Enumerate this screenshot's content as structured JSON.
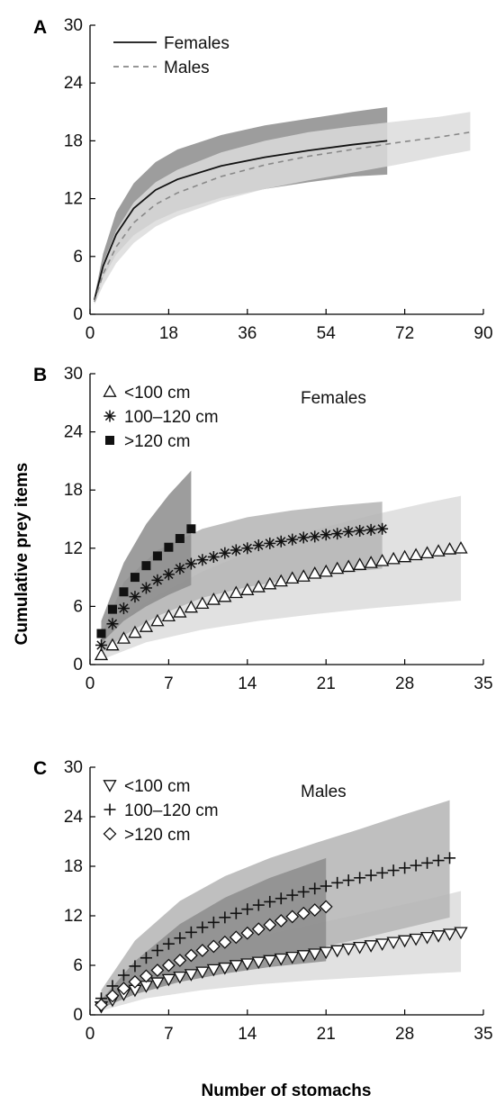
{
  "colors": {
    "background": "#ffffff",
    "axis": "#000000",
    "band_light": "#dcdcdc",
    "band_mid": "#b4b4b4",
    "band_dark": "#8c8c8c",
    "females_line": "#111111",
    "males_line": "#888888"
  },
  "axis_titles": {
    "ylabel": "Cumulative prey items",
    "xlabel": "Number of stomachs"
  },
  "chart_data": [
    {
      "panel": "A",
      "type": "line",
      "xlim": [
        0,
        90
      ],
      "ylim": [
        0,
        30
      ],
      "xticks": [
        0,
        18,
        36,
        54,
        72,
        90
      ],
      "yticks": [
        0,
        6,
        12,
        18,
        24,
        30
      ],
      "legend_position": "top-left",
      "series": [
        {
          "name": "Females",
          "style": "solid",
          "color": "#111111",
          "x": [
            1,
            3,
            6,
            10,
            15,
            20,
            30,
            40,
            50,
            60,
            68
          ],
          "y": [
            1.5,
            5.0,
            8.3,
            11.0,
            12.9,
            14.0,
            15.4,
            16.3,
            17.0,
            17.6,
            18.0
          ],
          "band_lower": [
            1.3,
            3.8,
            6.2,
            8.2,
            9.7,
            10.7,
            12.1,
            13.0,
            13.7,
            14.3,
            14.5
          ],
          "band_upper": [
            1.8,
            6.3,
            10.6,
            13.6,
            15.8,
            17.1,
            18.6,
            19.6,
            20.3,
            21.0,
            21.5
          ],
          "band_color": "#8c8c8c"
        },
        {
          "name": "Males",
          "style": "dashed",
          "color": "#888888",
          "x": [
            1,
            3,
            6,
            10,
            15,
            20,
            30,
            40,
            50,
            60,
            70,
            80,
            87
          ],
          "y": [
            1.3,
            4.2,
            7.0,
            9.5,
            11.4,
            12.6,
            14.3,
            15.5,
            16.4,
            17.1,
            17.8,
            18.4,
            18.9
          ],
          "band_lower": [
            1.0,
            3.0,
            5.3,
            7.4,
            9.1,
            10.2,
            11.8,
            13.0,
            13.9,
            14.7,
            15.5,
            16.4,
            17.0
          ],
          "band_upper": [
            1.6,
            5.3,
            8.7,
            11.6,
            13.7,
            15.0,
            16.8,
            18.0,
            18.9,
            19.5,
            20.0,
            20.5,
            21.0
          ],
          "band_color": "#dcdcdc"
        }
      ]
    },
    {
      "panel": "B",
      "type": "scatter",
      "annotation": "Females",
      "xlim": [
        0,
        35
      ],
      "ylim": [
        0,
        30
      ],
      "xticks": [
        0,
        7,
        14,
        21,
        28,
        35
      ],
      "yticks": [
        0,
        6,
        12,
        18,
        24,
        30
      ],
      "legend_position": "top-left",
      "series": [
        {
          "name": "<100 cm",
          "marker": "triangle-up",
          "x": [
            1,
            2,
            3,
            4,
            5,
            6,
            7,
            8,
            9,
            10,
            11,
            12,
            13,
            14,
            15,
            16,
            17,
            18,
            19,
            20,
            21,
            22,
            23,
            24,
            25,
            26,
            27,
            28,
            29,
            30,
            31,
            32,
            33
          ],
          "y": [
            1.0,
            2.0,
            2.7,
            3.3,
            3.9,
            4.5,
            5.0,
            5.4,
            5.9,
            6.3,
            6.7,
            7.0,
            7.4,
            7.7,
            8.0,
            8.3,
            8.6,
            8.9,
            9.1,
            9.4,
            9.6,
            9.9,
            10.1,
            10.3,
            10.5,
            10.7,
            10.9,
            11.1,
            11.3,
            11.5,
            11.7,
            11.9,
            12.0
          ],
          "band_x": [
            1,
            5,
            10,
            15,
            20,
            25,
            30,
            33
          ],
          "band_lower": [
            0.5,
            2.3,
            3.6,
            4.5,
            5.2,
            5.8,
            6.3,
            6.6
          ],
          "band_upper": [
            2.5,
            6.5,
            9.6,
            12.0,
            13.9,
            15.4,
            16.7,
            17.4
          ],
          "band_color": "#dcdcdc"
        },
        {
          "name": "100–120 cm",
          "marker": "asterisk",
          "x": [
            1,
            2,
            3,
            4,
            5,
            6,
            7,
            8,
            9,
            10,
            11,
            12,
            13,
            14,
            15,
            16,
            17,
            18,
            19,
            20,
            21,
            22,
            23,
            24,
            25,
            26
          ],
          "y": [
            2.0,
            4.2,
            5.8,
            7.0,
            7.9,
            8.7,
            9.3,
            9.9,
            10.4,
            10.8,
            11.1,
            11.5,
            11.8,
            12.0,
            12.3,
            12.5,
            12.7,
            12.9,
            13.1,
            13.2,
            13.4,
            13.5,
            13.7,
            13.8,
            13.9,
            14.0
          ],
          "band_x": [
            1,
            3,
            6,
            10,
            14,
            18,
            22,
            26
          ],
          "band_lower": [
            1.2,
            3.0,
            5.0,
            6.9,
            8.0,
            8.8,
            9.4,
            9.9
          ],
          "band_upper": [
            3.0,
            8.5,
            11.8,
            14.0,
            15.2,
            15.9,
            16.4,
            16.8
          ],
          "band_color": "#b4b4b4"
        },
        {
          "name": ">120 cm",
          "marker": "square-filled",
          "x": [
            1,
            2,
            3,
            4,
            5,
            6,
            7,
            8,
            9
          ],
          "y": [
            3.2,
            5.7,
            7.5,
            9.0,
            10.2,
            11.2,
            12.1,
            13.0,
            14.0
          ],
          "band_x": [
            1,
            3,
            5,
            7,
            9
          ],
          "band_lower": [
            2.2,
            4.5,
            6.0,
            7.2,
            8.2
          ],
          "band_upper": [
            4.5,
            10.5,
            14.5,
            17.5,
            20.0
          ],
          "band_color": "#8c8c8c"
        }
      ]
    },
    {
      "panel": "C",
      "type": "scatter",
      "annotation": "Males",
      "xlim": [
        0,
        35
      ],
      "ylim": [
        0,
        30
      ],
      "xticks": [
        0,
        7,
        14,
        21,
        28,
        35
      ],
      "yticks": [
        0,
        6,
        12,
        18,
        24,
        30
      ],
      "legend_position": "top-left",
      "series": [
        {
          "name": "<100 cm",
          "marker": "triangle-down",
          "x": [
            1,
            2,
            3,
            4,
            5,
            6,
            7,
            8,
            9,
            10,
            11,
            12,
            13,
            14,
            15,
            16,
            17,
            18,
            19,
            20,
            21,
            22,
            23,
            24,
            25,
            26,
            27,
            28,
            29,
            30,
            31,
            32,
            33
          ],
          "y": [
            1.0,
            1.8,
            2.5,
            3.0,
            3.5,
            3.9,
            4.3,
            4.6,
            4.9,
            5.2,
            5.5,
            5.7,
            6.0,
            6.2,
            6.4,
            6.6,
            6.8,
            7.0,
            7.2,
            7.4,
            7.6,
            7.8,
            8.0,
            8.2,
            8.4,
            8.6,
            8.8,
            9.0,
            9.2,
            9.4,
            9.6,
            9.8,
            10.0
          ],
          "band_x": [
            1,
            5,
            10,
            15,
            20,
            25,
            30,
            33
          ],
          "band_lower": [
            0.5,
            2.0,
            3.0,
            3.7,
            4.2,
            4.6,
            5.0,
            5.2
          ],
          "band_upper": [
            1.8,
            5.5,
            7.7,
            9.5,
            11.0,
            12.5,
            14.0,
            15.0
          ],
          "band_color": "#dcdcdc"
        },
        {
          "name": "100–120 cm",
          "marker": "plus",
          "x": [
            1,
            2,
            3,
            4,
            5,
            6,
            7,
            8,
            9,
            10,
            11,
            12,
            13,
            14,
            15,
            16,
            17,
            18,
            19,
            20,
            21,
            22,
            23,
            24,
            25,
            26,
            27,
            28,
            29,
            30,
            31,
            32
          ],
          "y": [
            2.0,
            3.5,
            4.8,
            5.9,
            6.9,
            7.8,
            8.6,
            9.3,
            10.0,
            10.6,
            11.2,
            11.8,
            12.3,
            12.8,
            13.3,
            13.7,
            14.1,
            14.5,
            14.9,
            15.3,
            15.6,
            16.0,
            16.3,
            16.6,
            16.9,
            17.2,
            17.5,
            17.8,
            18.1,
            18.4,
            18.7,
            19.0
          ],
          "band_x": [
            1,
            4,
            8,
            12,
            16,
            20,
            24,
            28,
            32
          ],
          "band_lower": [
            1.2,
            2.8,
            4.2,
            5.5,
            6.8,
            8.0,
            9.2,
            10.5,
            11.8
          ],
          "band_upper": [
            3.0,
            9.0,
            13.8,
            16.8,
            19.0,
            20.8,
            22.5,
            24.3,
            26.0
          ],
          "band_color": "#b4b4b4"
        },
        {
          "name": ">120 cm",
          "marker": "diamond",
          "x": [
            1,
            2,
            3,
            4,
            5,
            6,
            7,
            8,
            9,
            10,
            11,
            12,
            13,
            14,
            15,
            16,
            17,
            18,
            19,
            20,
            21
          ],
          "y": [
            1.2,
            2.3,
            3.2,
            4.0,
            4.7,
            5.4,
            6.0,
            6.6,
            7.2,
            7.8,
            8.3,
            8.8,
            9.4,
            9.9,
            10.4,
            10.9,
            11.4,
            11.9,
            12.3,
            12.7,
            13.1
          ],
          "band_x": [
            1,
            4,
            8,
            12,
            16,
            21
          ],
          "band_lower": [
            0.8,
            2.5,
            4.0,
            5.0,
            5.8,
            6.5
          ],
          "band_upper": [
            1.8,
            6.5,
            11.0,
            14.2,
            16.6,
            19.0
          ],
          "band_color": "#8c8c8c"
        }
      ]
    }
  ]
}
